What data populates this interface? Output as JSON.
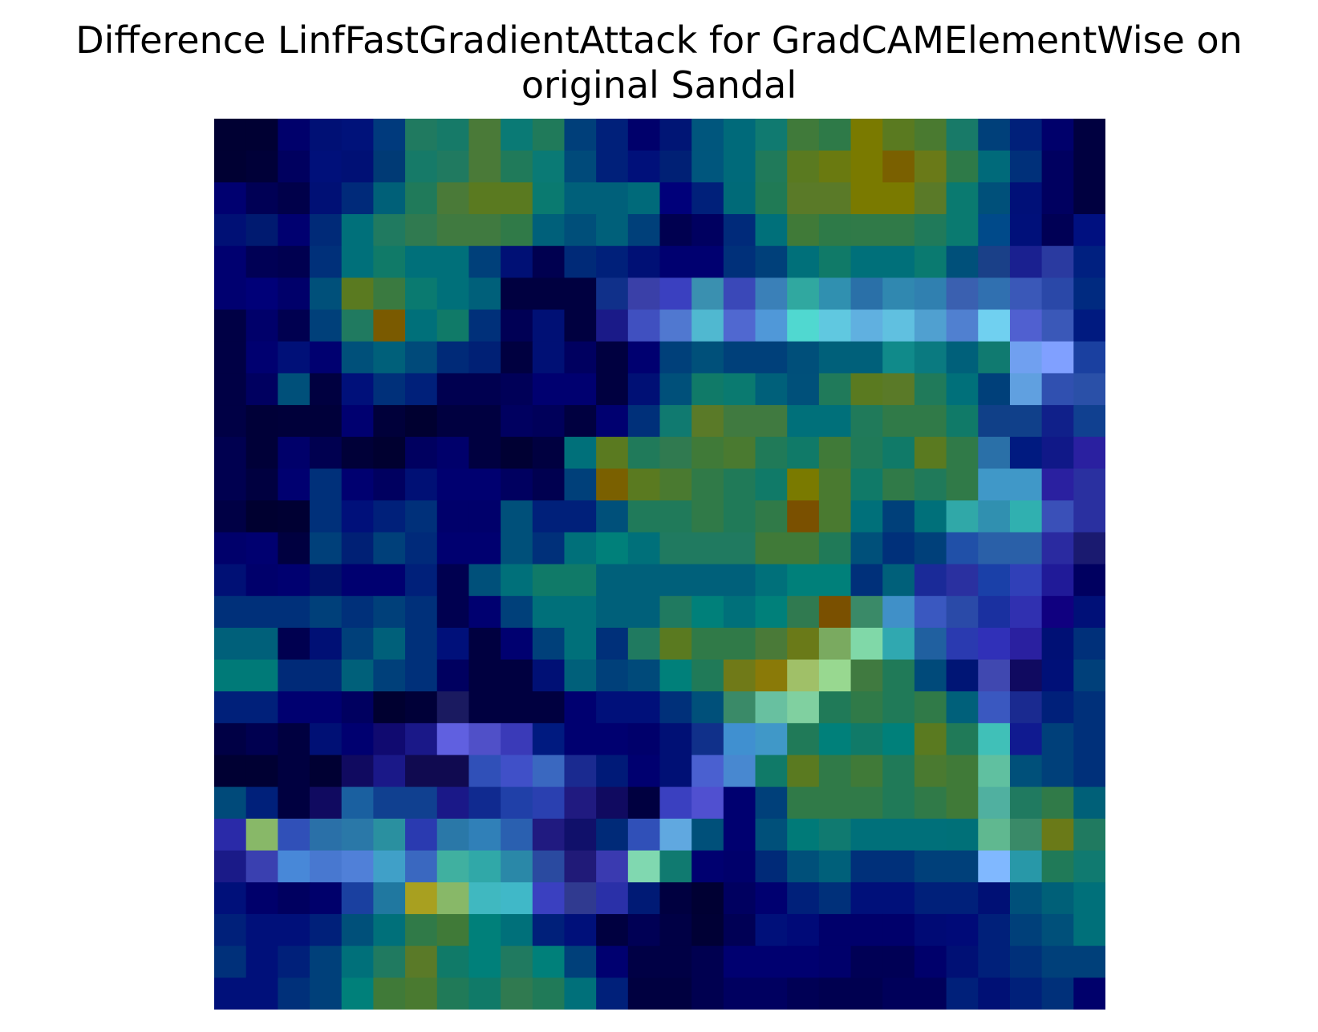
{
  "chart_data": {
    "type": "heatmap",
    "title_lines": [
      "Difference LinfFastGradientAttack for GradCAMElementWise on",
      "original Sandal"
    ],
    "axis": "off",
    "rows": 28,
    "cols": 28,
    "colors": [
      [
        "#000033",
        "#000033",
        "#00006b",
        "#001075",
        "#00127a",
        "#003a7d",
        "#207a60",
        "#167a68",
        "#4a7a38",
        "#0a7a75",
        "#207a5a",
        "#003f7a",
        "#00207a",
        "#00006b",
        "#001575",
        "#00567d",
        "#006a7a",
        "#107a70",
        "#407a3a",
        "#2e7a48",
        "#7a7a00",
        "#5a7a20",
        "#4a7a30",
        "#187a68",
        "#00407a",
        "#00207a",
        "#00006b",
        "#000040"
      ],
      [
        "#000033",
        "#000038",
        "#00005f",
        "#00107a",
        "#001075",
        "#003a75",
        "#167a68",
        "#207a60",
        "#4a7a38",
        "#207a5a",
        "#0a7a75",
        "#004a7a",
        "#00207a",
        "#00107a",
        "#002075",
        "#00567d",
        "#006a7a",
        "#207a5a",
        "#5a7a20",
        "#6a7a10",
        "#7a7a00",
        "#7a6000",
        "#6a7a18",
        "#2e7a48",
        "#006a7a",
        "#00307a",
        "#000060",
        "#000040"
      ],
      [
        "#000070",
        "#000055",
        "#00004a",
        "#001075",
        "#002a7a",
        "#006078",
        "#207a5a",
        "#4a7a38",
        "#5a7a20",
        "#5a7a20",
        "#0a7a70",
        "#00607a",
        "#00607a",
        "#006a7a",
        "#00007a",
        "#00207a",
        "#006a78",
        "#207a55",
        "#5a7a28",
        "#5a7a28",
        "#7a7a00",
        "#7a7a00",
        "#5a7a28",
        "#0a7a70",
        "#00507a",
        "#001078",
        "#000060",
        "#000040"
      ],
      [
        "#001075",
        "#001a70",
        "#000070",
        "#002a78",
        "#00707a",
        "#207a60",
        "#307a50",
        "#407a40",
        "#407a40",
        "#307a48",
        "#00607a",
        "#004f7a",
        "#00607a",
        "#00407a",
        "#000050",
        "#000060",
        "#002a7a",
        "#00707a",
        "#407a38",
        "#2e7a48",
        "#307a48",
        "#307a48",
        "#207a5a",
        "#0a7a70",
        "#004a8a",
        "#00107a",
        "#000055",
        "#001080"
      ],
      [
        "#000070",
        "#000055",
        "#000050",
        "#00307a",
        "#00707a",
        "#107a68",
        "#00707a",
        "#00707a",
        "#00407a",
        "#001075",
        "#000050",
        "#002a78",
        "#00207a",
        "#001075",
        "#000070",
        "#000070",
        "#00307a",
        "#00407a",
        "#00707a",
        "#107a68",
        "#00707a",
        "#00707a",
        "#0a7a70",
        "#00507a",
        "#1a4088",
        "#1a2090",
        "#2a3aa0",
        "#002080"
      ],
      [
        "#000070",
        "#000078",
        "#00006a",
        "#00507a",
        "#5a7a20",
        "#3a7a40",
        "#0a7a70",
        "#00707a",
        "#00607a",
        "#000040",
        "#000040",
        "#000040",
        "#10308a",
        "#3a40a8",
        "#3a40c0",
        "#3a90b0",
        "#3a48b8",
        "#3a80b8",
        "#30a8a0",
        "#3090b0",
        "#2a70a8",
        "#3088b0",
        "#3080b0",
        "#3a60b0",
        "#3070b0",
        "#3a58b8",
        "#2a48a8",
        "#002a80"
      ],
      [
        "#000045",
        "#00006a",
        "#000050",
        "#00407a",
        "#207a60",
        "#7a5a00",
        "#00707a",
        "#107a68",
        "#00307a",
        "#000055",
        "#001075",
        "#000040",
        "#1a1a88",
        "#4050c0",
        "#5078d0",
        "#50b8d0",
        "#5068d0",
        "#5098d8",
        "#50d8d0",
        "#60c8e0",
        "#60b0e0",
        "#60c0e0",
        "#50a0d0",
        "#5080d0",
        "#70d0f0",
        "#5060d0",
        "#3a58b8",
        "#001a80"
      ],
      [
        "#000045",
        "#000070",
        "#001078",
        "#000070",
        "#00507a",
        "#00607a",
        "#004a7a",
        "#002a78",
        "#002075",
        "#000040",
        "#001075",
        "#000060",
        "#000040",
        "#000070",
        "#00407a",
        "#00507a",
        "#00407a",
        "#00407a",
        "#004f7a",
        "#00607a",
        "#00607a",
        "#108a8a",
        "#0a7a80",
        "#00607a",
        "#107a70",
        "#70a0f0",
        "#80a0ff",
        "#1a40a0"
      ],
      [
        "#000045",
        "#000060",
        "#00507a",
        "#000040",
        "#00107a",
        "#00307a",
        "#00207a",
        "#000050",
        "#000050",
        "#000058",
        "#000070",
        "#000070",
        "#000040",
        "#001075",
        "#00507a",
        "#107a68",
        "#0a7a70",
        "#00607a",
        "#00507a",
        "#207a5a",
        "#5a7a20",
        "#5a7a28",
        "#207a5a",
        "#00707a",
        "#00407a",
        "#60a0e0",
        "#3050b0",
        "#2a50a8"
      ],
      [
        "#000045",
        "#000038",
        "#00003a",
        "#00003a",
        "#000070",
        "#00003a",
        "#000030",
        "#000040",
        "#000040",
        "#000060",
        "#00005a",
        "#000040",
        "#000070",
        "#00307a",
        "#107a70",
        "#5a7a28",
        "#407a40",
        "#407a40",
        "#00707a",
        "#00707a",
        "#207a5a",
        "#307a48",
        "#307a48",
        "#107a68",
        "#104088",
        "#10408a",
        "#10208a",
        "#104090"
      ],
      [
        "#000050",
        "#000038",
        "#00006a",
        "#000050",
        "#000038",
        "#000030",
        "#000060",
        "#00006b",
        "#000040",
        "#000033",
        "#000040",
        "#00707a",
        "#5a7a20",
        "#207a5a",
        "#307a50",
        "#407a38",
        "#4a7a30",
        "#207a58",
        "#107a68",
        "#407a38",
        "#207a58",
        "#107a68",
        "#5a7a20",
        "#307a48",
        "#2a70a8",
        "#001a80",
        "#101888",
        "#2a20a0"
      ],
      [
        "#000050",
        "#000040",
        "#000070",
        "#00307a",
        "#000070",
        "#000060",
        "#001075",
        "#000070",
        "#000070",
        "#000060",
        "#000050",
        "#00407a",
        "#7a6000",
        "#5a7a20",
        "#4a7a30",
        "#307a48",
        "#207a58",
        "#107a68",
        "#7a7a00",
        "#4a7a30",
        "#107a68",
        "#307a48",
        "#207a5a",
        "#307a48",
        "#4098c8",
        "#4098c8",
        "#2a20a0",
        "#2a30a0"
      ],
      [
        "#000045",
        "#000030",
        "#000033",
        "#00307a",
        "#00107a",
        "#00207a",
        "#00307a",
        "#00006b",
        "#00006b",
        "#00507a",
        "#00207a",
        "#00207a",
        "#00507a",
        "#207a5a",
        "#207a5a",
        "#307a48",
        "#207a58",
        "#307a48",
        "#7a5000",
        "#4a7a30",
        "#00707a",
        "#00407a",
        "#00707a",
        "#30a8a8",
        "#3090b0",
        "#30b0b0",
        "#3a50b8",
        "#2a30a0"
      ],
      [
        "#00006b",
        "#000070",
        "#000040",
        "#00407a",
        "#002075",
        "#00407a",
        "#002a7a",
        "#000070",
        "#000070",
        "#00507a",
        "#00307a",
        "#00707a",
        "#00807a",
        "#00707a",
        "#207a60",
        "#207a60",
        "#207a60",
        "#407a38",
        "#407a38",
        "#207a58",
        "#00507a",
        "#00307a",
        "#00407a",
        "#2050a8",
        "#2a60a8",
        "#2a60a8",
        "#2a2aa0",
        "#1a1a70"
      ],
      [
        "#001075",
        "#00006b",
        "#000070",
        "#00106b",
        "#000070",
        "#000070",
        "#00207a",
        "#000050",
        "#00507a",
        "#00707a",
        "#107a68",
        "#107a68",
        "#00607a",
        "#00607a",
        "#00607a",
        "#00607a",
        "#00607a",
        "#00707a",
        "#00807a",
        "#00807a",
        "#00307a",
        "#00607a",
        "#1a2a98",
        "#2a30a0",
        "#1a40a8",
        "#3040b8",
        "#201a98",
        "#000060"
      ],
      [
        "#00307a",
        "#00307a",
        "#00307a",
        "#00407a",
        "#00307a",
        "#00407a",
        "#00307a",
        "#000050",
        "#000070",
        "#00407a",
        "#00707a",
        "#00707a",
        "#00607a",
        "#00607a",
        "#207a60",
        "#00807a",
        "#00707a",
        "#00807a",
        "#307a50",
        "#7a5000",
        "#3a8a68",
        "#4090c8",
        "#3a58c0",
        "#2a4aa8",
        "#1a30a0",
        "#3030b0",
        "#100080",
        "#001078"
      ],
      [
        "#00607a",
        "#00607a",
        "#000050",
        "#001075",
        "#00407a",
        "#00607a",
        "#00307a",
        "#00107a",
        "#000040",
        "#000070",
        "#00407a",
        "#00707a",
        "#00307a",
        "#207a60",
        "#5a7a20",
        "#307a48",
        "#307a48",
        "#4a7a38",
        "#6a7a18",
        "#7aaa60",
        "#80d8a8",
        "#30a8b0",
        "#2060a0",
        "#2a3ab0",
        "#3030b8",
        "#2a20a0",
        "#001075",
        "#00307a"
      ],
      [
        "#007a78",
        "#007a78",
        "#002a78",
        "#002a78",
        "#00607a",
        "#00407a",
        "#00307a",
        "#000060",
        "#000040",
        "#000040",
        "#001075",
        "#00607a",
        "#00407a",
        "#004a7a",
        "#00807a",
        "#207a58",
        "#707a18",
        "#8a7a08",
        "#a0c068",
        "#98d890",
        "#407a40",
        "#207a58",
        "#004a7a",
        "#001575",
        "#4048b0",
        "#100a60",
        "#001078",
        "#00407a"
      ],
      [
        "#00207a",
        "#00207a",
        "#000070",
        "#000070",
        "#000060",
        "#000030",
        "#000038",
        "#1a1a60",
        "#000040",
        "#000040",
        "#000040",
        "#000070",
        "#00107a",
        "#00107a",
        "#00307a",
        "#00507a",
        "#3a8a68",
        "#68c0a0",
        "#80d0a0",
        "#207a58",
        "#307a48",
        "#207a58",
        "#307a48",
        "#00607a",
        "#3a58c0",
        "#1a2a90",
        "#00207a",
        "#00307a"
      ],
      [
        "#000045",
        "#000050",
        "#000040",
        "#001075",
        "#000070",
        "#100a70",
        "#1a1888",
        "#6060e0",
        "#5050c8",
        "#3a3ab8",
        "#001a80",
        "#000070",
        "#000070",
        "#00006b",
        "#001075",
        "#10308a",
        "#4090d0",
        "#4098c8",
        "#207a58",
        "#00807a",
        "#107a68",
        "#00807a",
        "#5a7a20",
        "#207a58",
        "#40c0b8",
        "#101a90",
        "#00407a",
        "#00307a"
      ],
      [
        "#000033",
        "#000033",
        "#000040",
        "#000033",
        "#100a60",
        "#1a1888",
        "#100a50",
        "#100a50",
        "#3050b8",
        "#4050c8",
        "#3a68c0",
        "#1a2a90",
        "#001a78",
        "#000070",
        "#001075",
        "#4a60d0",
        "#4888d0",
        "#107a68",
        "#5a7a20",
        "#307a48",
        "#407a38",
        "#207a58",
        "#4a7a30",
        "#407a38",
        "#60c0a0",
        "#00507a",
        "#00407a",
        "#00307a"
      ],
      [
        "#004a7a",
        "#00207a",
        "#000040",
        "#100a60",
        "#1a60a0",
        "#104090",
        "#104090",
        "#1a1888",
        "#102a90",
        "#2040a8",
        "#2a40b0",
        "#201a80",
        "#100a60",
        "#000040",
        "#3a40c0",
        "#5050d0",
        "#000070",
        "#00407a",
        "#307a48",
        "#307a48",
        "#307a48",
        "#207a58",
        "#307a48",
        "#407a38",
        "#50b0a0",
        "#207a60",
        "#307a48",
        "#006078"
      ],
      [
        "#2a2aa8",
        "#88b868",
        "#3050b8",
        "#2a70a8",
        "#2a78a8",
        "#2a90a0",
        "#2a3ab0",
        "#2a78a8",
        "#3080b8",
        "#2a60b0",
        "#201a80",
        "#10106a",
        "#002a78",
        "#3050b8",
        "#60a8e0",
        "#00507a",
        "#000070",
        "#00507a",
        "#007a78",
        "#107a70",
        "#00707a",
        "#00707a",
        "#00707a",
        "#007078",
        "#60b890",
        "#3a8a68",
        "#6a7a18",
        "#207a60"
      ],
      [
        "#1a1a88",
        "#3a40b0",
        "#4888d8",
        "#4878d0",
        "#5080d8",
        "#40a0c8",
        "#3a68c0",
        "#40b0a0",
        "#30a8a8",
        "#2a88a8",
        "#2a4aa0",
        "#201a78",
        "#3a3ab0",
        "#80d8b0",
        "#107a70",
        "#000070",
        "#00006b",
        "#002a78",
        "#00507a",
        "#00607a",
        "#00307a",
        "#00307a",
        "#00407a",
        "#00407a",
        "#80b8ff",
        "#2898a8",
        "#207a58",
        "#107a70"
      ],
      [
        "#00107a",
        "#00006b",
        "#000060",
        "#00006b",
        "#1a40a0",
        "#2078a0",
        "#a8a020",
        "#88b868",
        "#40b8c0",
        "#40b8c8",
        "#3a40c0",
        "#303a90",
        "#2a30a8",
        "#001a75",
        "#000040",
        "#000033",
        "#000060",
        "#000070",
        "#00207a",
        "#00307a",
        "#00107a",
        "#00107a",
        "#00207a",
        "#00207a",
        "#001075",
        "#00507a",
        "#006078",
        "#00707a"
      ],
      [
        "#00207a",
        "#00107a",
        "#00107a",
        "#00207a",
        "#00507a",
        "#00707a",
        "#307a48",
        "#407a38",
        "#00807a",
        "#00707a",
        "#00207a",
        "#00107a",
        "#000040",
        "#000055",
        "#000045",
        "#000035",
        "#000055",
        "#00107a",
        "#000a78",
        "#00006b",
        "#00006b",
        "#00006b",
        "#000a75",
        "#000a78",
        "#00207a",
        "#00407a",
        "#00507a",
        "#00707a"
      ],
      [
        "#00307a",
        "#00107a",
        "#00207a",
        "#00407a",
        "#00707a",
        "#207a60",
        "#5a7a28",
        "#107a68",
        "#00807a",
        "#207a60",
        "#00807a",
        "#00407a",
        "#000070",
        "#000045",
        "#000045",
        "#000050",
        "#000070",
        "#000070",
        "#000070",
        "#00006b",
        "#000055",
        "#000055",
        "#00006b",
        "#001075",
        "#00207a",
        "#00307a",
        "#00407a",
        "#00407a"
      ],
      [
        "#00107a",
        "#00107a",
        "#00307a",
        "#00407a",
        "#00807a",
        "#407a38",
        "#4a7a30",
        "#207a58",
        "#107a68",
        "#307a50",
        "#207a58",
        "#00707a",
        "#00207a",
        "#000040",
        "#000040",
        "#000050",
        "#000060",
        "#000060",
        "#000055",
        "#000050",
        "#000050",
        "#00005a",
        "#00005a",
        "#00207a",
        "#001075",
        "#00207a",
        "#00307a",
        "#00006b"
      ]
    ]
  }
}
